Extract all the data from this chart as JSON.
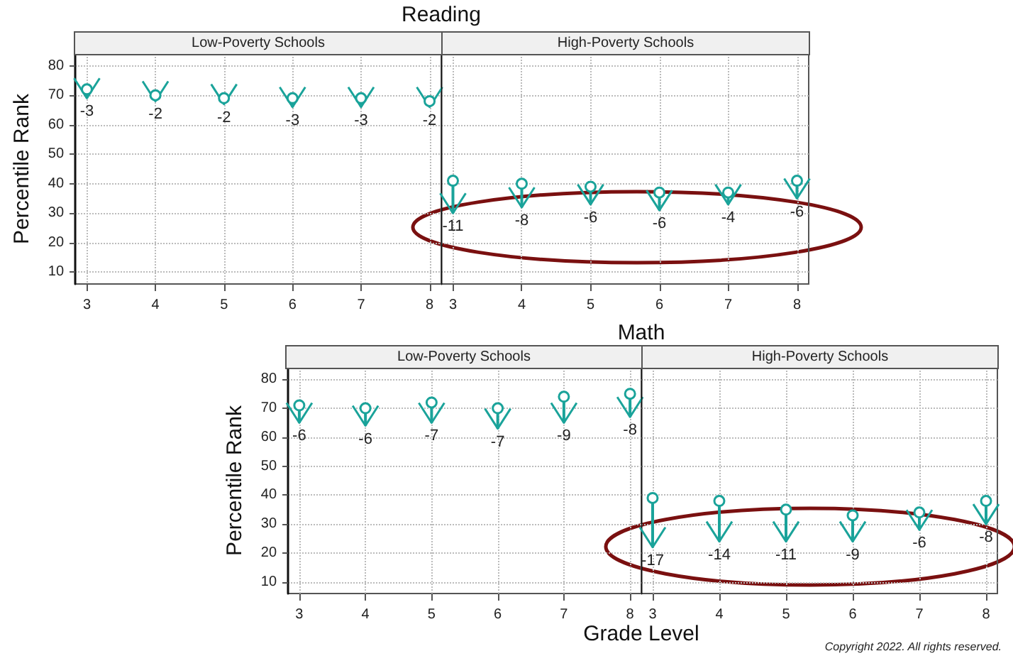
{
  "chart_data": [
    {
      "type": "bar",
      "title": "Reading",
      "subtitle": "Low-Poverty Schools",
      "ylabel": "Percentile Rank",
      "x": [
        3,
        4,
        5,
        6,
        7,
        8
      ],
      "xlim": [
        2.83,
        8.17
      ],
      "xticks": [
        3,
        4,
        5,
        6,
        7,
        8
      ],
      "base": [
        72,
        70,
        69,
        69,
        69,
        68
      ],
      "values": [
        -3,
        -2,
        -2,
        -3,
        -3,
        -2
      ],
      "color": "#1aa39a",
      "data_labels": true,
      "ylim": [
        6,
        84
      ],
      "yticks": [
        10,
        20,
        30,
        40,
        50,
        60,
        70,
        80
      ],
      "grid": true
    },
    {
      "type": "bar",
      "subtitle": "High-Poverty Schools",
      "x": [
        3,
        4,
        5,
        6,
        7,
        8
      ],
      "xlim": [
        2.83,
        8.17
      ],
      "xticks": [
        3,
        4,
        5,
        6,
        7,
        8
      ],
      "base": [
        41,
        40,
        39,
        37,
        37,
        41
      ],
      "values": [
        -11,
        -8,
        -6,
        -6,
        -4,
        -6
      ],
      "color": "#1aa39a",
      "data_labels": true,
      "ylim": [
        6,
        84
      ],
      "yticks": [
        10,
        20,
        30,
        40,
        50,
        60,
        70,
        80
      ],
      "grid": true,
      "tick_labels": "x"
    },
    {
      "type": "bar",
      "title": "Math",
      "subtitle": "Low-Poverty Schools",
      "ylabel": "Percentile Rank",
      "xlabel": "Grade Level",
      "x": [
        3,
        4,
        5,
        6,
        7,
        8
      ],
      "xlim": [
        2.83,
        8.17
      ],
      "xticks": [
        3,
        4,
        5,
        6,
        7,
        8
      ],
      "base": [
        71,
        70,
        72,
        70,
        74,
        75
      ],
      "values": [
        -6,
        -6,
        -7,
        -7,
        -9,
        -8
      ],
      "color": "#1aa39a",
      "data_labels": true,
      "ylim": [
        6,
        84
      ],
      "yticks": [
        10,
        20,
        30,
        40,
        50,
        60,
        70,
        80
      ],
      "grid": true
    },
    {
      "type": "bar",
      "subtitle": "High-Poverty Schools",
      "x": [
        3,
        4,
        5,
        6,
        7,
        8
      ],
      "xlim": [
        2.83,
        8.17
      ],
      "xticks": [
        3,
        4,
        5,
        6,
        7,
        8
      ],
      "base": [
        39,
        38,
        35,
        33,
        34,
        38
      ],
      "values": [
        -17,
        -14,
        -11,
        -9,
        -6,
        -8
      ],
      "color": "#1aa39a",
      "data_labels": true,
      "ylim": [
        6,
        84
      ],
      "yticks": [
        10,
        20,
        30,
        40,
        50,
        60,
        70,
        80
      ],
      "grid": true,
      "tick_labels": "x",
      "annotations": [
        "Copyright 2022. All rights reserved."
      ]
    }
  ]
}
